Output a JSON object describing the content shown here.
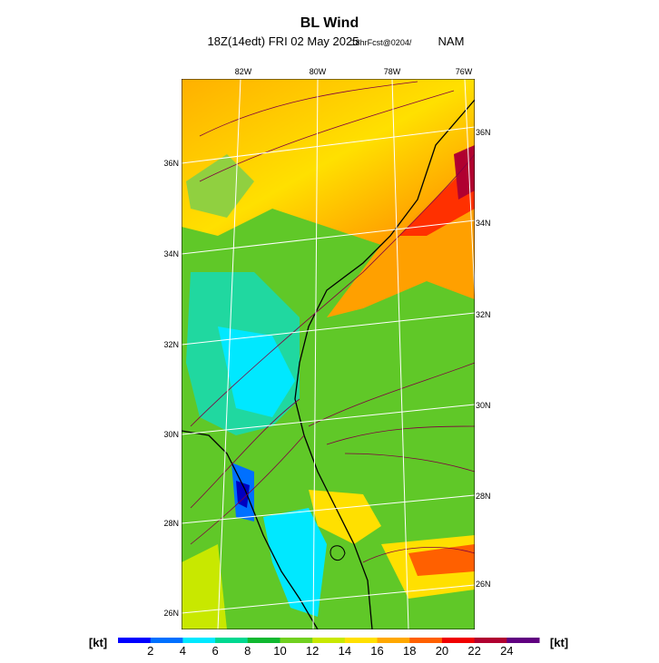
{
  "header": {
    "title": "BL Wind",
    "subtitle": "18Z(14edt) FRI 02 May 2025",
    "forecast": "18hrFcst@0204/",
    "model": "NAM"
  },
  "map": {
    "lon_labels": [
      "82W",
      "80W",
      "78W",
      "76W"
    ],
    "lat_labels_left": [
      "36N",
      "34N",
      "32N",
      "30N",
      "28N",
      "26N"
    ],
    "lat_labels_right": [
      "36N",
      "34N",
      "32N",
      "30N",
      "28N",
      "26N"
    ]
  },
  "colorbar": {
    "unit_left": "[kt]",
    "unit_right": "[kt]",
    "ticks": [
      2,
      4,
      6,
      8,
      10,
      12,
      14,
      16,
      18,
      20,
      22,
      24
    ],
    "colors": [
      "#0000ff",
      "#0070ff",
      "#00e8ff",
      "#00d890",
      "#10b830",
      "#70d020",
      "#c8e800",
      "#ffe000",
      "#ffa800",
      "#ff6000",
      "#f00000",
      "#b00030",
      "#600080"
    ]
  }
}
